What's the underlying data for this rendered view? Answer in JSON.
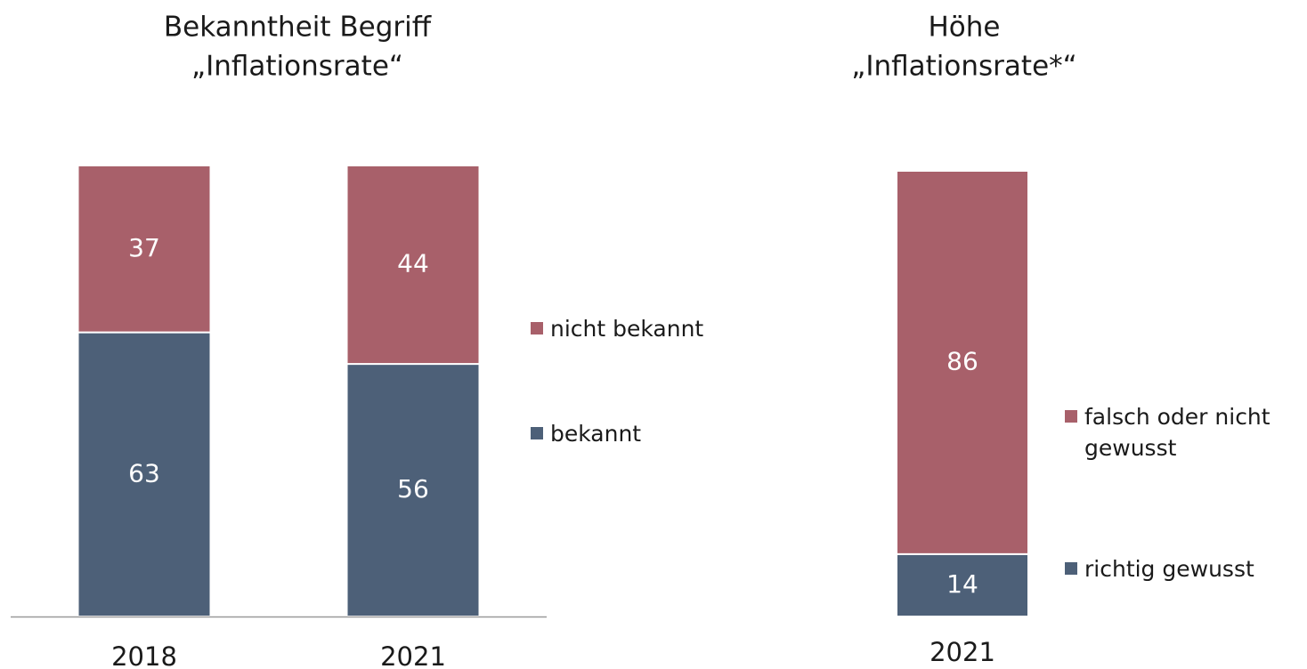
{
  "chart_data": [
    {
      "type": "bar",
      "stacked": true,
      "title": [
        "Bekanntheit Begriff",
        "„Inflationsrate“"
      ],
      "categories": [
        "2018",
        "2021"
      ],
      "series": [
        {
          "name": "bekannt",
          "color": "#4d6078",
          "values": [
            63,
            56
          ]
        },
        {
          "name": "nicht bekannt",
          "color": "#a8606a",
          "values": [
            37,
            44
          ]
        }
      ],
      "ylim": [
        0,
        100
      ]
    },
    {
      "type": "bar",
      "stacked": true,
      "title": [
        "Höhe",
        "„Inflationsrate*“"
      ],
      "categories": [
        "2021"
      ],
      "series": [
        {
          "name": "richtig gewusst",
          "color": "#4d6078",
          "values": [
            14
          ]
        },
        {
          "name": "falsch oder nicht gewusst",
          "color": "#a8606a",
          "values": [
            86
          ]
        }
      ],
      "ylim": [
        0,
        100
      ]
    }
  ]
}
